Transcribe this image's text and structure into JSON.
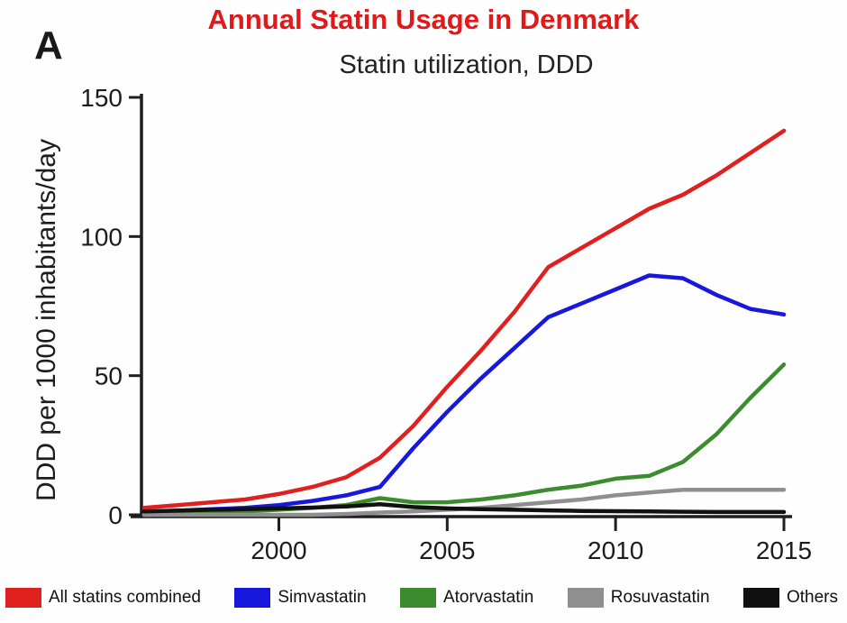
{
  "page": {
    "title": "Annual Statin Usage in Denmark",
    "title_color": "#e01a1a",
    "panel_label": "A"
  },
  "chart_data": {
    "type": "line",
    "title": "Statin utilization, DDD",
    "ylabel": "DDD per 1000 inhabitants/day",
    "xlabel": "",
    "xlim": [
      1996,
      2015
    ],
    "ylim": [
      0,
      150
    ],
    "xticks": [
      2000,
      2005,
      2010,
      2015
    ],
    "yticks": [
      0,
      50,
      100,
      150
    ],
    "grid": false,
    "legend_position": "bottom",
    "axis_color": "#1f1f1f",
    "x": [
      1996,
      1997,
      1998,
      1999,
      2000,
      2001,
      2002,
      2003,
      2004,
      2005,
      2006,
      2007,
      2008,
      2009,
      2010,
      2011,
      2012,
      2013,
      2014,
      2015
    ],
    "series": [
      {
        "name": "All statins combined",
        "color": "#e01f1f",
        "values": [
          2.5,
          3.5,
          4.5,
          5.5,
          7.5,
          10,
          13.5,
          20.5,
          32,
          46,
          59,
          73,
          89,
          96,
          103,
          110,
          115,
          122,
          130,
          138
        ]
      },
      {
        "name": "Simvastatin",
        "color": "#1717dd",
        "values": [
          1,
          1.5,
          2,
          2.5,
          3.5,
          5,
          7,
          10,
          24,
          37,
          49,
          60,
          71,
          76,
          81,
          86,
          85,
          79,
          74,
          72
        ]
      },
      {
        "name": "Atorvastatin",
        "color": "#3d8b2f",
        "values": [
          0,
          0.3,
          0.8,
          1.2,
          1.8,
          2.5,
          3.5,
          6,
          4.5,
          4.5,
          5.5,
          7,
          9,
          10.5,
          13,
          14,
          19,
          29,
          42,
          54
        ]
      },
      {
        "name": "Rosuvastatin",
        "color": "#8f8f8f",
        "values": [
          0,
          0,
          0,
          0,
          0,
          0,
          0.3,
          0.8,
          1.2,
          1.8,
          2.5,
          3.5,
          4.5,
          5.5,
          7,
          8,
          9,
          9,
          9,
          9
        ]
      },
      {
        "name": "Others",
        "color": "#111111",
        "values": [
          1.2,
          1.5,
          1.8,
          2,
          2.3,
          2.6,
          3,
          3.8,
          2.8,
          2.3,
          2,
          1.8,
          1.6,
          1.4,
          1.3,
          1.2,
          1.1,
          1,
          1,
          1
        ]
      }
    ]
  }
}
